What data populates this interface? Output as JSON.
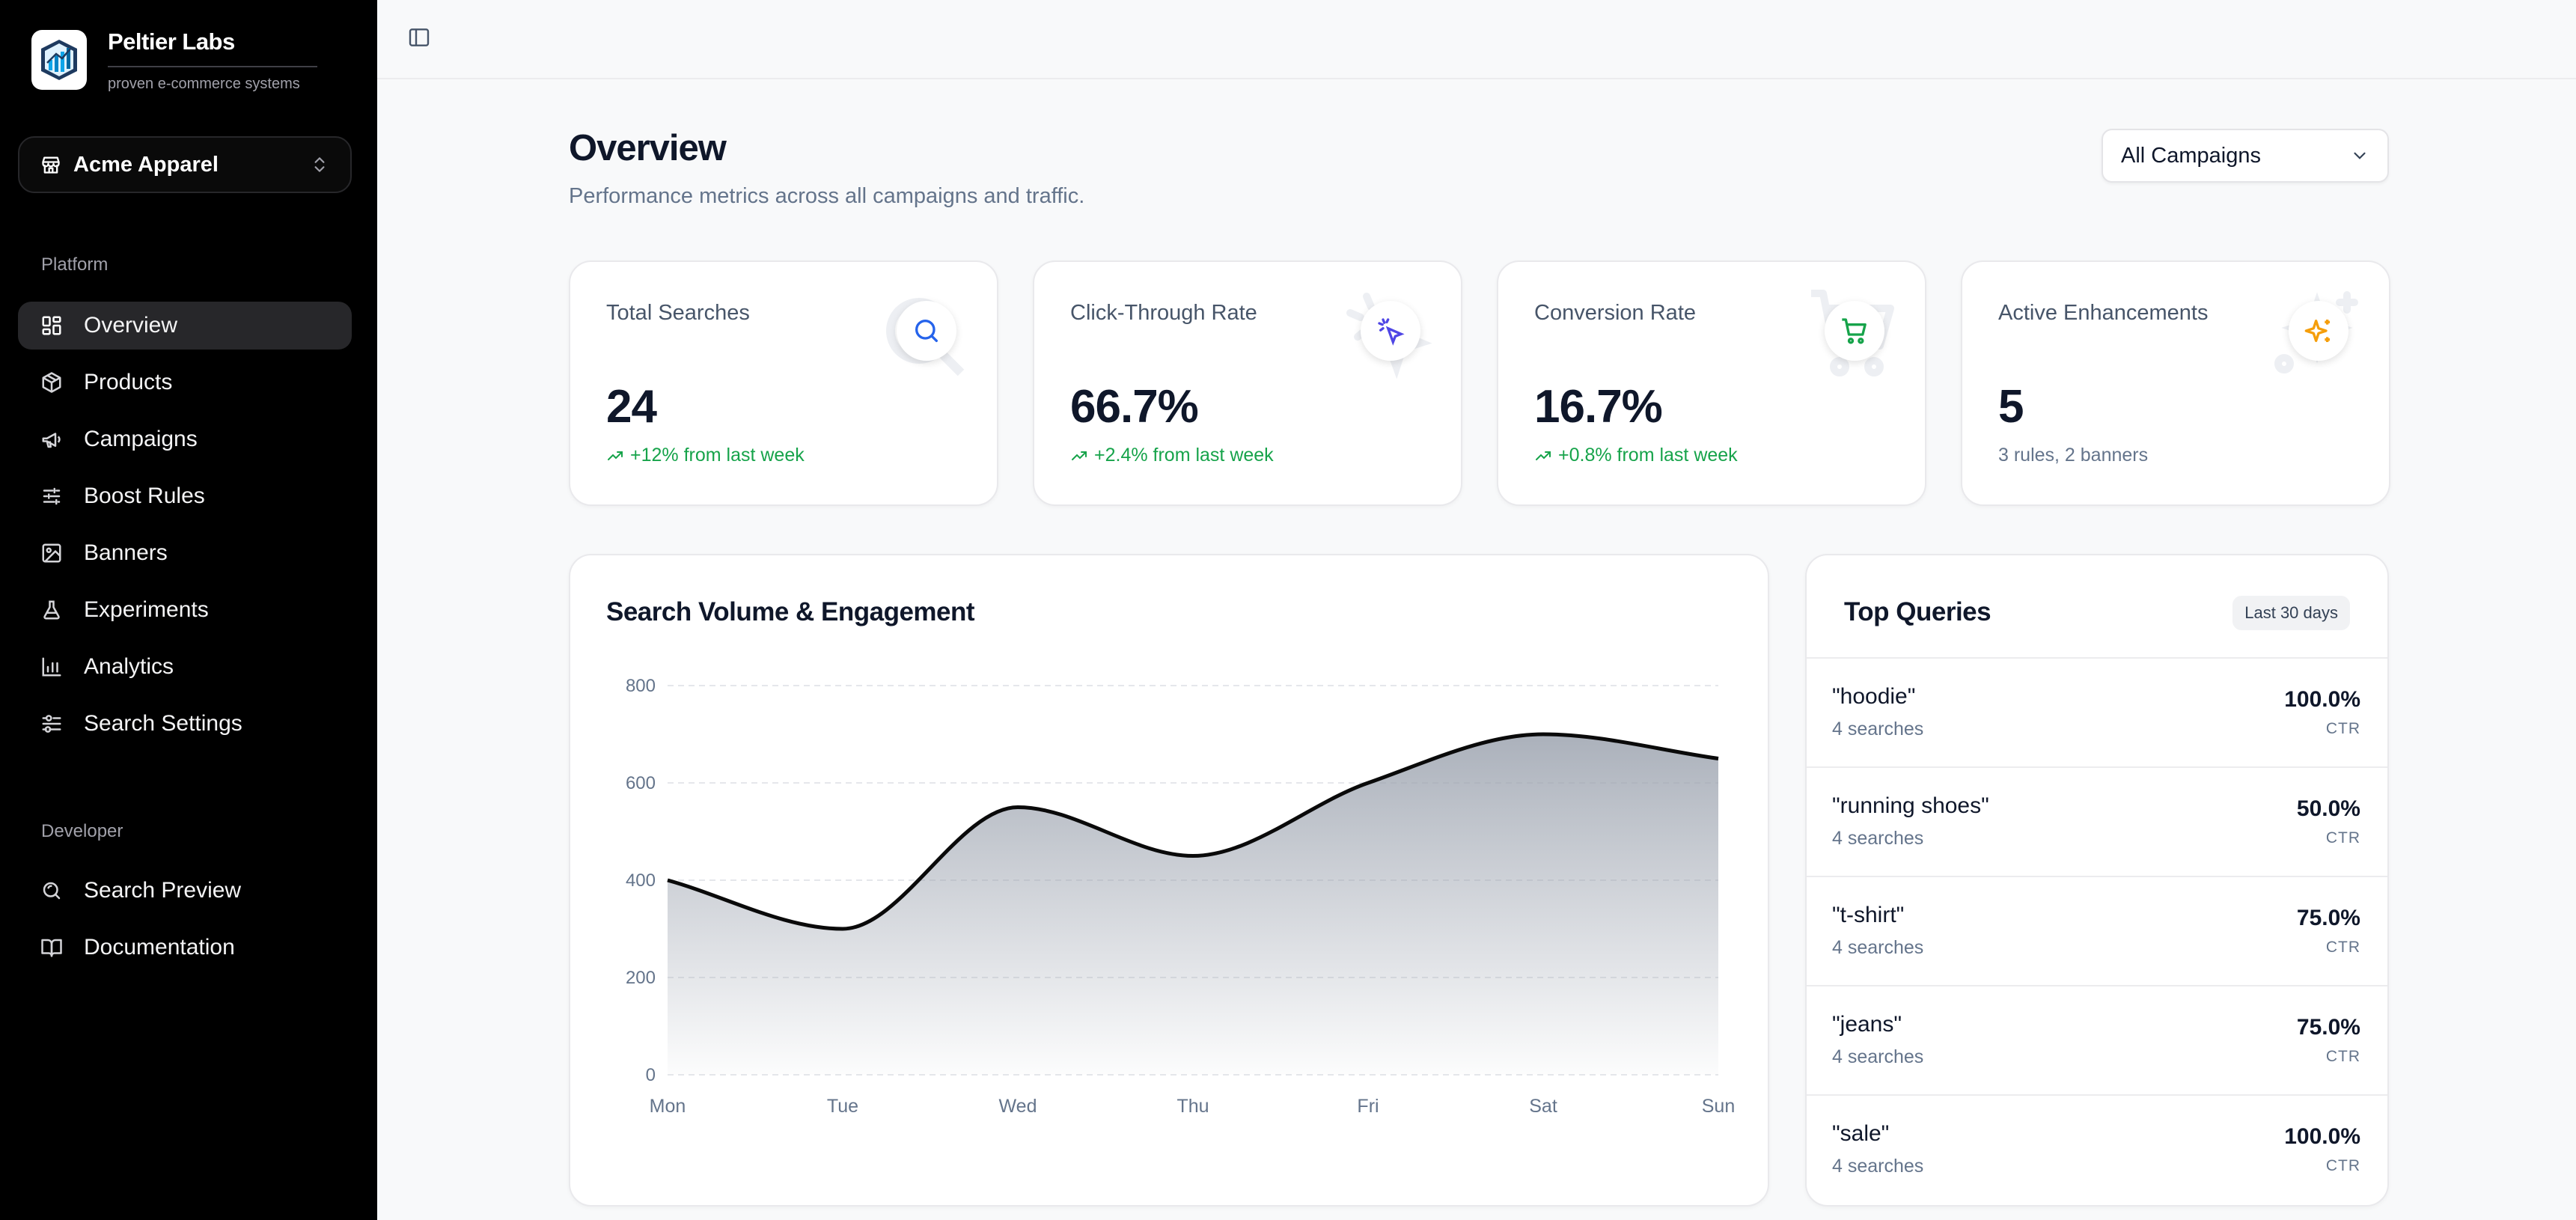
{
  "brand": {
    "name": "Peltier Labs",
    "tagline": "proven e-commerce systems"
  },
  "store": {
    "name": "Acme Apparel"
  },
  "sidebar": {
    "platform_label": "Platform",
    "platform_items": [
      {
        "label": "Overview",
        "icon": "grid-icon",
        "active": true
      },
      {
        "label": "Products",
        "icon": "package-icon"
      },
      {
        "label": "Campaigns",
        "icon": "megaphone-icon"
      },
      {
        "label": "Boost Rules",
        "icon": "sliders-icon"
      },
      {
        "label": "Banners",
        "icon": "image-icon"
      },
      {
        "label": "Experiments",
        "icon": "flask-icon"
      },
      {
        "label": "Analytics",
        "icon": "bar-chart-icon"
      },
      {
        "label": "Search Settings",
        "icon": "settings-sliders-icon"
      }
    ],
    "developer_label": "Developer",
    "developer_items": [
      {
        "label": "Search Preview",
        "icon": "search-icon"
      },
      {
        "label": "Documentation",
        "icon": "book-icon"
      }
    ]
  },
  "header": {
    "title": "Overview",
    "subtitle": "Performance metrics across all campaigns and traffic.",
    "campaign_filter": "All Campaigns"
  },
  "stats": [
    {
      "title": "Total Searches",
      "value": "24",
      "delta": "+12% from last week",
      "icon": "search-icon",
      "accent": "#2563eb"
    },
    {
      "title": "Click-Through Rate",
      "value": "66.7%",
      "delta": "+2.4% from last week",
      "icon": "cursor-click-icon",
      "accent": "#4f46e5"
    },
    {
      "title": "Conversion Rate",
      "value": "16.7%",
      "delta": "+0.8% from last week",
      "icon": "shopping-cart-icon",
      "accent": "#16a34a"
    },
    {
      "title": "Active Enhancements",
      "value": "5",
      "delta": "3 rules, 2 banners",
      "icon": "sparkles-icon",
      "accent": "#f59e0b"
    }
  ],
  "chart": {
    "title": "Search Volume & Engagement"
  },
  "chart_data": {
    "type": "area",
    "categories": [
      "Mon",
      "Tue",
      "Wed",
      "Thu",
      "Fri",
      "Sat",
      "Sun"
    ],
    "values": [
      400,
      300,
      550,
      450,
      600,
      700,
      650
    ],
    "ylim": [
      0,
      800
    ],
    "yticks": [
      "0",
      "200",
      "400",
      "600",
      "800"
    ],
    "grid": true,
    "line_color": "#0a0a0a",
    "fill_color": "#a3a3a3"
  },
  "top_queries": {
    "title": "Top Queries",
    "badge": "Last 30 days",
    "ctr_label": "CTR",
    "items": [
      {
        "query": "\"hoodie\"",
        "count": "4 searches",
        "ctr": "100.0%"
      },
      {
        "query": "\"running shoes\"",
        "count": "4 searches",
        "ctr": "50.0%"
      },
      {
        "query": "\"t-shirt\"",
        "count": "4 searches",
        "ctr": "75.0%"
      },
      {
        "query": "\"jeans\"",
        "count": "4 searches",
        "ctr": "75.0%"
      },
      {
        "query": "\"sale\"",
        "count": "4 searches",
        "ctr": "100.0%"
      }
    ]
  }
}
